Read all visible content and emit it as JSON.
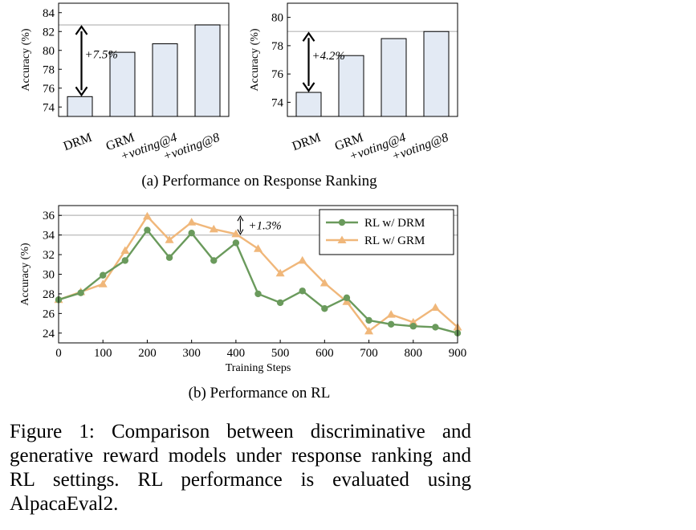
{
  "chart_data": [
    {
      "type": "bar",
      "panel": "left",
      "categories": [
        "DRM",
        "GRM",
        "+voting@4",
        "+voting@8"
      ],
      "values": [
        75.1,
        79.8,
        80.7,
        82.7
      ],
      "ylabel": "Accuracy (%)",
      "ylim": [
        73,
        85
      ],
      "yticks": [
        "74",
        "76",
        "78",
        "80",
        "82",
        "84"
      ],
      "reference_line": 82.7,
      "annotation": "+7.5%",
      "bar_fill": "#e3eaf4",
      "bar_stroke": "#000000"
    },
    {
      "type": "bar",
      "panel": "right",
      "categories": [
        "DRM",
        "GRM",
        "+voting@4",
        "+voting@8"
      ],
      "values": [
        74.7,
        77.3,
        78.5,
        79.0
      ],
      "ylabel": "Accuracy (%)",
      "ylim": [
        73,
        81
      ],
      "yticks": [
        "74",
        "76",
        "78",
        "80"
      ],
      "reference_line": 79.0,
      "annotation": "+4.2%",
      "bar_fill": "#e3eaf4",
      "bar_stroke": "#000000"
    },
    {
      "type": "line",
      "x": [
        0,
        50,
        100,
        150,
        200,
        250,
        300,
        350,
        400,
        450,
        500,
        550,
        600,
        650,
        700,
        750,
        800,
        850,
        900
      ],
      "series": [
        {
          "name": "RL w/ DRM",
          "color": "#6a9a5c",
          "marker": "circle",
          "values": [
            27.4,
            28.1,
            29.9,
            31.4,
            34.5,
            31.7,
            34.2,
            31.4,
            33.2,
            28.0,
            27.1,
            28.3,
            26.5,
            27.6,
            25.3,
            24.9,
            24.7,
            24.6,
            24.0
          ]
        },
        {
          "name": "RL w/ GRM",
          "color": "#f0b77a",
          "marker": "triangle",
          "values": [
            27.4,
            28.2,
            29.0,
            32.4,
            35.9,
            33.5,
            35.3,
            34.6,
            34.1,
            32.6,
            30.1,
            31.4,
            29.1,
            27.2,
            24.2,
            25.9,
            25.1,
            26.6,
            24.6
          ]
        }
      ],
      "xlabel": "Training Steps",
      "ylabel": "Accuracy (%)",
      "xlim": [
        0,
        900
      ],
      "ylim": [
        23,
        37
      ],
      "xticks": [
        "0",
        "100",
        "200",
        "300",
        "400",
        "500",
        "600",
        "700",
        "800",
        "900"
      ],
      "yticks": [
        "24",
        "26",
        "28",
        "30",
        "32",
        "34",
        "36"
      ],
      "reference_lines": [
        36.0,
        34.0
      ],
      "annotation": "+1.3%",
      "legend": "top-right"
    }
  ],
  "subcaptions": {
    "a": "(a) Performance on Response Ranking",
    "b": "(b) Performance on RL"
  },
  "caption": "Figure 1: Comparison between discriminative and generative reward models under response ranking and RL settings. RL performance is evaluated using AlpacaEval2.",
  "colors": {
    "reference_line": "#c8c8c8",
    "axis": "#000000"
  }
}
